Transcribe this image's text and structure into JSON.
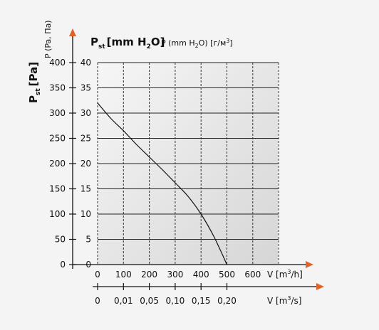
{
  "chart_data": {
    "type": "line",
    "x": [
      0,
      50,
      100,
      150,
      200,
      250,
      300,
      350,
      400,
      450,
      500
    ],
    "y": [
      320,
      290,
      265,
      238,
      213,
      188,
      162,
      135,
      100,
      55,
      0
    ],
    "xlim": [
      0,
      700
    ],
    "ylim": [
      0,
      400
    ],
    "grid": true,
    "x_ticks": [
      "0",
      "100",
      "200",
      "300",
      "400",
      "500",
      "600"
    ],
    "x2_ticks": [
      "0",
      "0,01",
      "0,05",
      "0,10",
      "0,15",
      "0,20"
    ],
    "y_ticks_pa": [
      "0",
      "50",
      "100",
      "150",
      "200",
      "250",
      "300",
      "350",
      "400"
    ],
    "y_ticks_mmh2o": [
      "0",
      "5",
      "10",
      "15",
      "20",
      "25",
      "30",
      "35",
      "40"
    ],
    "y_label_pa_main": "P",
    "y_label_pa_sub": "st",
    "y_label_pa_unit": "[Pa]",
    "y_label_pa_alt": "P (Pa, Па)",
    "y_label_mm_main": "P",
    "y_label_mm_sub": "st",
    "y_label_mm_unit": "[mm H",
    "y_label_mm_sub2": "2",
    "y_label_mm_end": "O]",
    "y_label_mm_alt": "P (mm H",
    "y_label_mm_alt_sub": "2",
    "y_label_mm_alt_end": "O) [г/м",
    "y_label_mm_alt_sup": "3",
    "y_label_mm_alt_close": "]",
    "x_label_main": "V [m",
    "x_label_sup": "3",
    "x_label_end": "/h]",
    "x2_label_main": "V [m",
    "x2_label_sup": "3",
    "x2_label_end": "/s]",
    "colors": {
      "axis_arrow": "#e0632a",
      "curve": "#111111",
      "grid": "#555555"
    }
  }
}
